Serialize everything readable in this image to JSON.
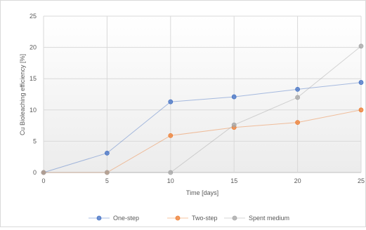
{
  "chart_data": {
    "type": "line",
    "title": "",
    "xlabel": "Time [days]",
    "ylabel": "Cu Bioleaching efficiency [%]",
    "x": [
      0,
      5,
      10,
      15,
      20,
      25
    ],
    "xlim": [
      0,
      25
    ],
    "ylim": [
      0,
      25
    ],
    "xticks": [
      0,
      5,
      10,
      15,
      20,
      25
    ],
    "yticks": [
      0,
      5,
      10,
      15,
      20,
      25
    ],
    "grid": true,
    "legend_position": "bottom",
    "series": [
      {
        "name": "One-step",
        "color": "#4472c4",
        "values": [
          0,
          3.1,
          11.3,
          12.1,
          13.3,
          14.4
        ]
      },
      {
        "name": "Two-step",
        "color": "#ed7d31",
        "values": [
          0,
          0,
          5.9,
          7.2,
          8.0,
          10.0
        ]
      },
      {
        "name": "Spent medium",
        "color": "#a5a5a5",
        "values": [
          0,
          0,
          0,
          7.6,
          12.0,
          20.2
        ]
      }
    ]
  }
}
